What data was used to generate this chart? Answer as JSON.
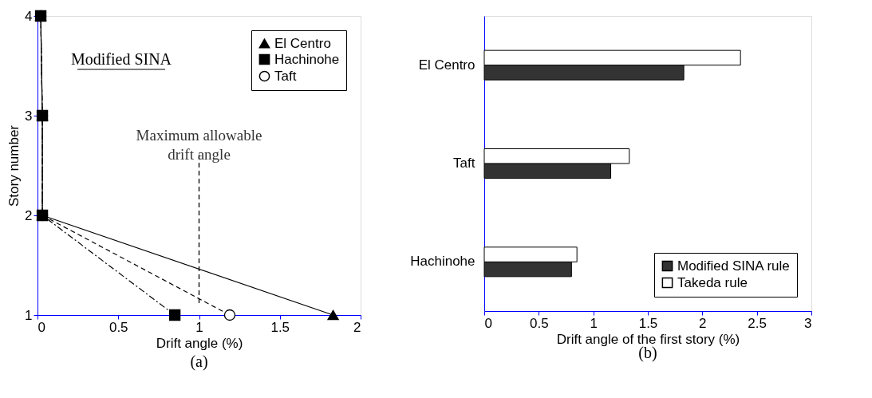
{
  "chart_data": [
    {
      "type": "line",
      "title": "(a)",
      "xlabel": "Drift angle (%)",
      "ylabel": "Story number",
      "xlim": [
        0,
        2
      ],
      "xticks": [
        0,
        0.5,
        1,
        1.5,
        2
      ],
      "ylim": [
        1,
        4
      ],
      "yticks": [
        1,
        2,
        3,
        4
      ],
      "grid": false,
      "legend": "top right",
      "series": [
        {
          "name": "El Centro",
          "color": "#000000",
          "marker": "triangle",
          "line_style": "solid",
          "x": [
            1.83,
            0.03,
            0.03,
            0.02
          ],
          "values": [
            1,
            2,
            3,
            4
          ]
        },
        {
          "name": "Hachinohe",
          "color": "#000000",
          "marker": "square",
          "line_style": "dashdot",
          "x": [
            0.85,
            0.03,
            0.03,
            0.02
          ],
          "values": [
            1,
            2,
            3,
            4
          ]
        },
        {
          "name": "Taft",
          "color": "#000000",
          "marker": "circle",
          "line_style": "dashed",
          "x": [
            1.19,
            0.03,
            0.03,
            0.02
          ],
          "values": [
            1,
            2,
            3,
            4
          ]
        }
      ],
      "ref_lines": [
        {
          "axis": "x",
          "value": 1,
          "label": "Maximum allowable drift angle",
          "line_style": "dashed",
          "color": "#000000"
        }
      ],
      "annotations": [
        "Modified SINA"
      ]
    },
    {
      "type": "bar",
      "orientation": "horizontal",
      "title": "(b)",
      "xlabel": "Drift angle of the first story (%)",
      "categories": [
        "El Centro",
        "Taft",
        "Hachinohe"
      ],
      "xlim": [
        0,
        3
      ],
      "xticks": [
        0,
        0.5,
        1,
        1.5,
        2,
        2.5,
        3
      ],
      "grid": false,
      "legend": "bottom right",
      "series": [
        {
          "name": "Modified SINA rule",
          "color": "#333333",
          "values": [
            1.83,
            1.16,
            0.8
          ]
        },
        {
          "name": "Takeda rule",
          "color": "#ffffff",
          "values": [
            2.35,
            1.33,
            0.85
          ]
        }
      ]
    }
  ]
}
